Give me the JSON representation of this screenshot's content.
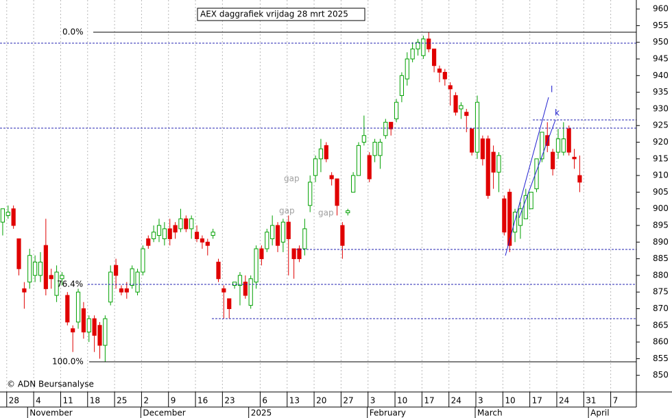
{
  "chart_data": {
    "type": "candlestick",
    "title": "AEX daggrafiek vrijdag 28 mrt 2025",
    "copyright": "© ADN Beursanalyse",
    "annotations": {
      "fib_labels": [
        "0.0%",
        "76.4%",
        "100.0%"
      ],
      "trend_labels": [
        "l",
        "k"
      ],
      "gap_labels": [
        "gap",
        "gap",
        "gap"
      ]
    },
    "up_color": "#00a000",
    "down_color": "#e00000",
    "ylim": [
      845,
      962.7
    ],
    "yticks": [
      850,
      855,
      860,
      865,
      870,
      875,
      880,
      885,
      890,
      895,
      900,
      905,
      910,
      915,
      920,
      925,
      930,
      935,
      940,
      945,
      950,
      955,
      960
    ],
    "categories": [
      null,
      "28",
      null,
      null,
      null,
      null,
      "4",
      null,
      null,
      null,
      null,
      "11",
      null,
      null,
      null,
      null,
      "18",
      null,
      null,
      null,
      null,
      "25",
      null,
      null,
      null,
      null,
      "2",
      null,
      null,
      null,
      null,
      "9",
      null,
      null,
      null,
      null,
      "16",
      null,
      null,
      null,
      null,
      "23",
      null,
      null,
      null,
      null,
      null,
      null,
      "6",
      null,
      null,
      null,
      null,
      "13",
      null,
      null,
      null,
      null,
      "20",
      null,
      null,
      null,
      null,
      "27",
      null,
      null,
      null,
      null,
      "3",
      null,
      null,
      null,
      null,
      "10",
      null,
      null,
      null,
      null,
      "17",
      null,
      null,
      null,
      null,
      "24",
      null,
      null,
      null,
      null,
      "3",
      null,
      null,
      null,
      null,
      "10",
      null,
      null,
      null,
      null,
      "17",
      null,
      null,
      null,
      null,
      "24",
      null,
      null,
      null,
      null,
      "31",
      null,
      null,
      null,
      null,
      "7",
      null,
      null,
      null,
      null
    ],
    "month_labels": [
      null,
      null,
      null,
      null,
      null,
      "November",
      null,
      null,
      null,
      null,
      null,
      null,
      null,
      null,
      null,
      null,
      null,
      null,
      null,
      null,
      null,
      null,
      null,
      null,
      null,
      null,
      "December",
      null,
      null,
      null,
      null,
      null,
      null,
      null,
      null,
      null,
      null,
      null,
      null,
      null,
      null,
      null,
      null,
      null,
      null,
      null,
      "2025",
      null,
      null,
      null,
      null,
      null,
      null,
      null,
      null,
      null,
      null,
      null,
      null,
      null,
      null,
      null,
      null,
      null,
      null,
      null,
      null,
      null,
      "February",
      null,
      null,
      null,
      null,
      null,
      null,
      null,
      null,
      null,
      null,
      null,
      null,
      null,
      null,
      null,
      null,
      null,
      null,
      null,
      "March",
      null,
      null,
      null,
      null,
      null,
      null,
      null,
      null,
      null,
      null,
      null,
      null,
      null,
      null,
      null,
      null,
      null,
      null,
      null,
      null,
      "April",
      null,
      null,
      null,
      null,
      null,
      null,
      null,
      null
    ],
    "open": [
      896,
      898,
      900,
      891,
      876,
      878,
      880,
      880,
      889,
      880,
      874,
      879,
      874,
      864,
      866,
      870,
      863,
      867,
      865,
      859,
      872,
      883,
      876,
      876,
      877,
      875,
      881,
      891,
      891,
      892,
      891,
      894,
      895,
      894,
      897,
      894,
      893,
      891,
      890,
      892,
      884,
      876,
      873,
      877,
      877,
      878,
      871,
      878,
      888,
      888,
      891,
      895,
      890,
      896,
      888,
      888,
      888,
      901,
      910,
      915,
      919,
      910,
      909,
      895,
      898.8,
      905,
      910,
      920,
      916,
      916,
      916,
      922,
      926,
      927,
      934,
      939,
      945,
      948,
      946,
      951,
      948,
      942,
      941,
      937,
      934,
      930,
      929,
      924,
      917,
      921,
      921,
      917,
      911,
      903,
      905,
      893,
      895,
      897,
      900,
      906,
      915,
      922,
      917,
      917,
      917,
      924,
      915.5,
      910,
      null,
      null,
      null,
      null,
      null,
      null,
      null,
      null,
      null,
      null
    ],
    "high": [
      900,
      901,
      901,
      891,
      878,
      888,
      886,
      887,
      897,
      882,
      883,
      881,
      875,
      865,
      876,
      872,
      868,
      868,
      866,
      868,
      883,
      885,
      877,
      878,
      883,
      882,
      889,
      892,
      895,
      897,
      896,
      897,
      896,
      900,
      898,
      898,
      895,
      892,
      891,
      894,
      885,
      877,
      873,
      878,
      881,
      880,
      880,
      889,
      889,
      894,
      898,
      896,
      897,
      898,
      888,
      889,
      897,
      910,
      916,
      921,
      920,
      911,
      909,
      896,
      900,
      911,
      920,
      928,
      917,
      921,
      921,
      927,
      926,
      933,
      941,
      947,
      950,
      951,
      952,
      953,
      948,
      943,
      942,
      938,
      935,
      932,
      930,
      924,
      934,
      922,
      922,
      919,
      917,
      904,
      906,
      900,
      902,
      906,
      905,
      915,
      923,
      926,
      918,
      924,
      926,
      925,
      918,
      916,
      null,
      null,
      null,
      null,
      null,
      null,
      null,
      null,
      null,
      null
    ],
    "low": [
      892,
      897,
      894,
      880,
      870,
      876,
      878,
      878,
      874,
      876,
      872,
      877,
      865,
      857,
      864,
      861,
      860,
      857,
      855,
      854,
      871,
      876,
      874,
      873,
      876,
      874,
      880,
      888,
      890,
      890,
      889,
      889,
      891,
      893,
      893,
      891,
      890,
      888,
      886,
      891,
      878,
      867,
      867,
      876,
      871,
      873,
      870,
      876,
      883,
      887,
      889,
      887,
      887,
      880,
      879,
      884,
      886,
      899,
      908,
      911,
      914,
      907,
      898,
      885,
      898,
      905,
      910,
      919,
      908,
      914,
      912,
      921,
      922,
      926,
      932,
      937,
      944,
      946,
      945,
      947,
      941,
      938,
      937,
      931,
      928,
      927,
      923,
      916,
      915,
      913,
      903,
      906,
      905,
      892,
      887,
      890,
      891,
      897,
      900,
      905,
      914,
      917,
      910,
      915,
      916,
      916,
      912,
      905,
      null,
      null,
      null,
      null,
      null,
      null,
      null,
      null,
      null,
      null
    ],
    "close": [
      900,
      899,
      895,
      882,
      875,
      886,
      884,
      884,
      876,
      879,
      881,
      880,
      866,
      863,
      875,
      863,
      867,
      862,
      859,
      867,
      881,
      880,
      875,
      875,
      882,
      881,
      888,
      889,
      893,
      895,
      894,
      891,
      893,
      897,
      894,
      897,
      891,
      890,
      889,
      893,
      879,
      875,
      870,
      878,
      880,
      874,
      879,
      888,
      885,
      893,
      895,
      889,
      896,
      891,
      885,
      885,
      894,
      908,
      915,
      918,
      915,
      909,
      901,
      889,
      899.4,
      910,
      919,
      922,
      909,
      920,
      920,
      926,
      924,
      932,
      940,
      945,
      948,
      950,
      951,
      948,
      943,
      941,
      939,
      936,
      929,
      931,
      928,
      917,
      932,
      915,
      904,
      911,
      916,
      893,
      889,
      899,
      900,
      904,
      905,
      915,
      923,
      919,
      912,
      921,
      921,
      917,
      915,
      908,
      null,
      null,
      null,
      null,
      null,
      null,
      null,
      null,
      null,
      null
    ]
  }
}
